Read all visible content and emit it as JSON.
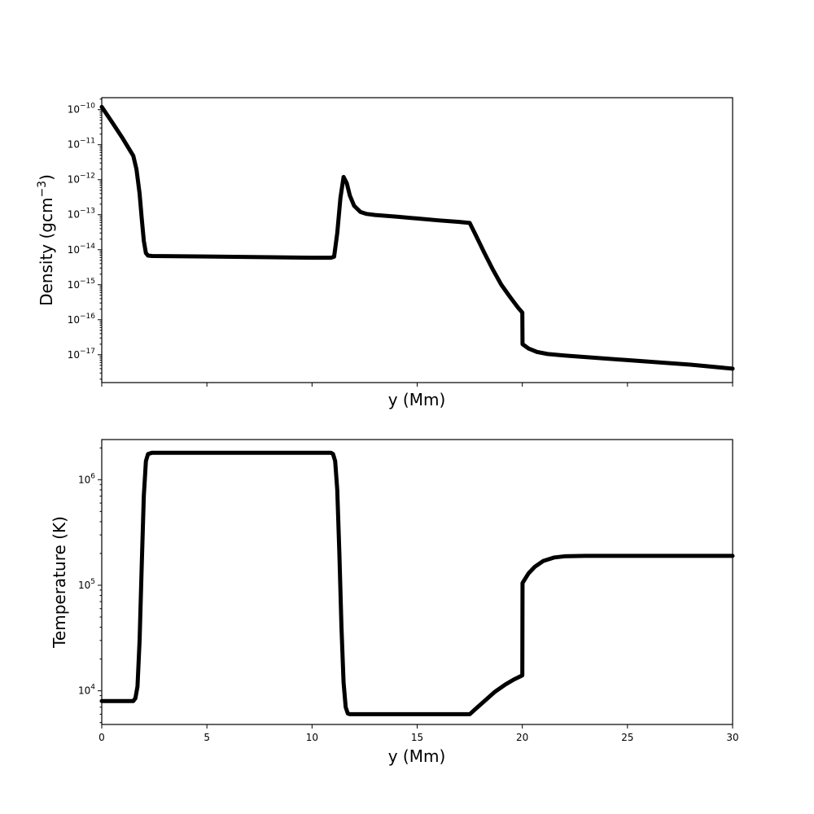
{
  "chart_data": [
    {
      "type": "line",
      "title": "",
      "xlabel": "y (Mm)",
      "ylabel": "Density (gcm",
      "ylabel_exponent": "−3",
      "ylabel_close": ")",
      "xlim": [
        0,
        30
      ],
      "ylim": [
        1.6e-18,
        2.2e-10
      ],
      "yscale": "log",
      "grid": false,
      "legend": "none",
      "x_ticks": [
        0,
        5,
        10,
        15,
        20,
        25,
        30
      ],
      "x_tick_labels_shown": false,
      "y_ticks": [
        {
          "value": 1e-10,
          "base": "10",
          "exp": "−10"
        },
        {
          "value": 1e-11,
          "base": "10",
          "exp": "−11"
        },
        {
          "value": 1e-12,
          "base": "10",
          "exp": "−12"
        },
        {
          "value": 1e-13,
          "base": "10",
          "exp": "−13"
        },
        {
          "value": 1e-14,
          "base": "10",
          "exp": "−14"
        },
        {
          "value": 1e-15,
          "base": "10",
          "exp": "−15"
        },
        {
          "value": 1e-16,
          "base": "10",
          "exp": "−16"
        },
        {
          "value": 1e-17,
          "base": "10",
          "exp": "−17"
        }
      ],
      "series": [
        {
          "color": "#000000",
          "x": [
            0,
            0.5,
            1.0,
            1.5,
            1.65,
            1.8,
            1.9,
            2.0,
            2.1,
            2.2,
            2.4,
            5,
            8,
            10,
            10.9,
            11.05,
            11.2,
            11.35,
            11.5,
            11.65,
            11.8,
            12.0,
            12.3,
            12.6,
            13.0,
            14,
            15,
            16,
            17,
            17.5,
            17.8,
            18.2,
            18.6,
            19.0,
            19.4,
            19.8,
            20.0,
            20.01,
            20.3,
            20.7,
            21.2,
            22,
            25,
            28,
            30
          ],
          "y": [
            1.2e-10,
            4.3e-11,
            1.5e-11,
            4.8e-12,
            2e-12,
            4e-13,
            8e-14,
            1.8e-14,
            8e-15,
            6.8e-15,
            6.6e-15,
            6.4e-15,
            6.1e-15,
            5.9e-15,
            5.9e-15,
            6.3e-15,
            3e-14,
            3e-13,
            1.2e-12,
            8e-13,
            3.5e-13,
            1.8e-13,
            1.2e-13,
            1.05e-13,
            9.8e-14,
            8.8e-14,
            7.8e-14,
            6.9e-14,
            6.2e-14,
            5.8e-14,
            2.5e-14,
            8e-15,
            2.7e-15,
            1e-15,
            4.6e-16,
            2.2e-16,
            1.6e-16,
            2e-17,
            1.5e-17,
            1.2e-17,
            1.05e-17,
            9.5e-18,
            7e-18,
            5.2e-18,
            4e-18
          ]
        }
      ]
    },
    {
      "type": "line",
      "title": "",
      "xlabel": "y (Mm)",
      "ylabel": "Temperature (K)",
      "xlim": [
        0,
        30
      ],
      "ylim": [
        4800,
        2400000.0
      ],
      "yscale": "log",
      "grid": false,
      "legend": "none",
      "x_ticks": [
        0,
        5,
        10,
        15,
        20,
        25,
        30
      ],
      "x_tick_labels_shown": true,
      "x_tick_labels": [
        "0",
        "5",
        "10",
        "15",
        "20",
        "25",
        "30"
      ],
      "y_ticks": [
        {
          "value": 1000000,
          "base": "10",
          "exp": "6"
        },
        {
          "value": 100000,
          "base": "10",
          "exp": "5"
        },
        {
          "value": 10000,
          "base": "10",
          "exp": "4"
        }
      ],
      "y_minor_ticks": [
        5000,
        6000,
        7000,
        8000,
        9000,
        20000,
        30000,
        40000,
        50000,
        60000,
        70000,
        80000,
        90000,
        200000,
        300000,
        400000,
        500000,
        600000,
        700000,
        800000,
        900000,
        2000000
      ],
      "series": [
        {
          "color": "#000000",
          "x": [
            0,
            1.0,
            1.5,
            1.6,
            1.7,
            1.8,
            1.9,
            2.0,
            2.1,
            2.2,
            2.4,
            5,
            8,
            10,
            10.9,
            11.0,
            11.1,
            11.2,
            11.3,
            11.4,
            11.5,
            11.6,
            11.7,
            11.8,
            12.0,
            14,
            16,
            17.5,
            17.8,
            18.2,
            18.7,
            19.2,
            19.6,
            20.0,
            20.01,
            20.3,
            20.6,
            21.0,
            21.5,
            22,
            23,
            25,
            28,
            30
          ],
          "y": [
            8000,
            8000,
            8000,
            8500,
            11000,
            30000,
            150000,
            700000,
            1500000,
            1750000,
            1800000,
            1800000,
            1800000,
            1800000,
            1800000,
            1750000,
            1500000,
            800000,
            200000,
            40000,
            12000,
            7000,
            6100,
            6000,
            6000,
            6000,
            6000,
            6000,
            6800,
            8000,
            9800,
            11500,
            12800,
            14000,
            105000,
            130000,
            150000,
            170000,
            183000,
            188000,
            190000,
            190000,
            190000,
            190000
          ]
        }
      ]
    }
  ]
}
